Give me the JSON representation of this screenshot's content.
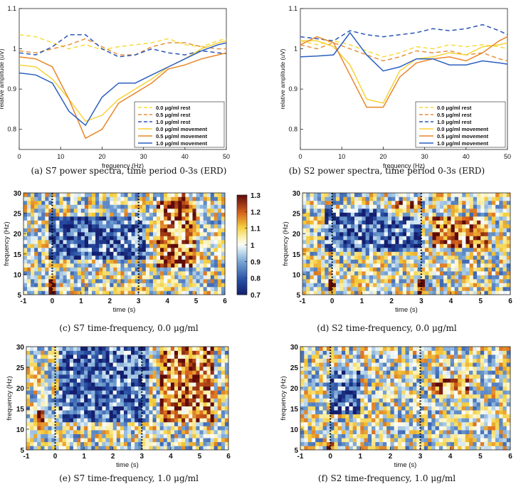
{
  "colors": {
    "rest_0": "#f5dc3c",
    "rest_05": "#e8913a",
    "rest_10": "#2b56b8",
    "mov_0": "#f7d33a",
    "mov_05": "#e8862a",
    "mov_10": "#2d5fc0"
  },
  "chart_data": [
    {
      "type": "line",
      "caption": "(a) S7 power spectra, time period 0-3s (ERD)",
      "xlabel": "frequency (Hz)",
      "ylabel": "relative amplitude (uV)",
      "xlim": [
        0,
        50
      ],
      "ylim": [
        0.75,
        1.1
      ],
      "xticks": [
        "0",
        "10",
        "20",
        "30",
        "40",
        "50"
      ],
      "yticks": [
        "0.8",
        "0.9",
        "1",
        "1.1"
      ],
      "x": [
        0,
        4,
        8,
        12,
        16,
        20,
        24,
        28,
        32,
        36,
        40,
        44,
        48,
        50
      ],
      "series": [
        {
          "name": "0.0 μg/ml rest",
          "style": "dashed",
          "values": [
            1.035,
            1.03,
            1.015,
            1.0,
            1.01,
            0.998,
            1.005,
            1.01,
            1.015,
            1.025,
            1.01,
            1.005,
            1.02,
            1.025
          ]
        },
        {
          "name": "0.5 μg/ml rest",
          "style": "dashed",
          "values": [
            0.995,
            0.99,
            1.0,
            1.01,
            1.025,
            1.005,
            0.985,
            0.985,
            1.005,
            1.015,
            1.015,
            1.005,
            1.0,
            1.0
          ]
        },
        {
          "name": "1.0 μg/ml rest",
          "style": "dashed",
          "values": [
            0.99,
            0.985,
            1.005,
            1.035,
            1.035,
            1.0,
            0.98,
            0.985,
            1.0,
            0.99,
            0.985,
            0.995,
            0.99,
            0.988
          ]
        },
        {
          "name": "0.0 μg/ml movement",
          "style": "solid",
          "values": [
            0.96,
            0.955,
            0.925,
            0.875,
            0.82,
            0.835,
            0.875,
            0.9,
            0.925,
            0.955,
            0.975,
            1.0,
            1.015,
            1.02
          ]
        },
        {
          "name": "0.5 μg/ml movement",
          "style": "solid",
          "values": [
            0.98,
            0.975,
            0.955,
            0.875,
            0.778,
            0.8,
            0.865,
            0.89,
            0.915,
            0.95,
            0.96,
            0.975,
            0.985,
            0.99
          ]
        },
        {
          "name": "1.0 μg/ml movement",
          "style": "solid",
          "values": [
            0.94,
            0.935,
            0.915,
            0.845,
            0.81,
            0.88,
            0.915,
            0.915,
            0.935,
            0.955,
            0.975,
            0.995,
            1.01,
            1.015
          ]
        }
      ]
    },
    {
      "type": "line",
      "caption": "(b) S2 power spectra, time period 0-3s (ERD)",
      "xlabel": "frequency (Hz)",
      "ylabel": "relative amplitude (uV)",
      "xlim": [
        0,
        50
      ],
      "ylim": [
        0.75,
        1.1
      ],
      "xticks": [
        "0",
        "10",
        "20",
        "30",
        "40",
        "50"
      ],
      "yticks": [
        "0.8",
        "0.9",
        "1",
        "1.1"
      ],
      "x": [
        0,
        4,
        8,
        12,
        16,
        20,
        24,
        28,
        32,
        36,
        40,
        44,
        48,
        50
      ],
      "series": [
        {
          "name": "0.0 μg/ml rest",
          "style": "dashed",
          "values": [
            1.02,
            1.01,
            1.02,
            1.01,
            0.995,
            0.98,
            0.99,
            1.005,
            1.0,
            1.01,
            1.005,
            1.01,
            1.005,
            1.0
          ]
        },
        {
          "name": "0.5 μg/ml rest",
          "style": "dashed",
          "values": [
            1.01,
            1.0,
            1.015,
            1.0,
            0.985,
            0.97,
            0.98,
            0.995,
            0.99,
            0.995,
            0.985,
            0.99,
            0.975,
            0.97
          ]
        },
        {
          "name": "1.0 μg/ml rest",
          "style": "dashed",
          "values": [
            1.03,
            1.025,
            1.02,
            1.045,
            1.035,
            1.03,
            1.035,
            1.04,
            1.05,
            1.045,
            1.05,
            1.06,
            1.045,
            1.035
          ]
        },
        {
          "name": "0.0 μg/ml movement",
          "style": "solid",
          "values": [
            1.02,
            1.02,
            1.005,
            0.96,
            0.875,
            0.865,
            0.945,
            0.975,
            0.98,
            0.99,
            0.985,
            1.005,
            1.01,
            1.015
          ]
        },
        {
          "name": "0.5 μg/ml movement",
          "style": "solid",
          "values": [
            1.01,
            1.03,
            1.015,
            0.935,
            0.855,
            0.855,
            0.93,
            0.965,
            0.975,
            0.98,
            0.97,
            0.99,
            1.02,
            1.03
          ]
        },
        {
          "name": "1.0 μg/ml movement",
          "style": "solid",
          "values": [
            0.98,
            0.982,
            0.985,
            1.04,
            0.985,
            0.945,
            0.955,
            0.975,
            0.975,
            0.96,
            0.96,
            0.97,
            0.965,
            0.962
          ]
        }
      ]
    },
    {
      "type": "heatmap",
      "caption": "(c) S7 time-frequency, 0.0 μg/ml",
      "xlabel": "time (s)",
      "ylabel": "frequency (Hz)",
      "xlim": [
        -1,
        6
      ],
      "ylim": [
        5,
        30
      ],
      "xticks": [
        "-1",
        "0",
        "1",
        "2",
        "3",
        "4",
        "5",
        "6"
      ],
      "yticks": [
        "5",
        "10",
        "15",
        "20",
        "25",
        "30"
      ],
      "event_times": [
        0,
        3
      ],
      "pattern": {
        "seed": 7,
        "erd_bands": [
          [
            -0.1,
            3.2,
            14,
            24
          ]
        ],
        "ers_bands": [
          [
            3.6,
            5.0,
            12,
            28
          ],
          [
            4.0,
            4.8,
            26,
            30
          ]
        ],
        "ers_spots": [
          [
            0.0,
            7
          ]
        ]
      },
      "colorbar": {
        "ticks": [
          "1.3",
          "1.2",
          "1.1",
          "1",
          "0.9",
          "0.8",
          "0.7"
        ],
        "range": [
          0.7,
          1.3
        ]
      }
    },
    {
      "type": "heatmap",
      "caption": "(d) S2 time-frequency, 0.0 μg/ml",
      "xlabel": "time (s)",
      "ylabel": "frequency (Hz)",
      "xlim": [
        -1,
        6
      ],
      "ylim": [
        5,
        30
      ],
      "xticks": [
        "-1",
        "0",
        "1",
        "2",
        "3",
        "4",
        "5",
        "6"
      ],
      "yticks": [
        "5",
        "10",
        "15",
        "20",
        "25",
        "30"
      ],
      "event_times": [
        0,
        3
      ],
      "pattern": {
        "seed": 11,
        "erd_bands": [
          [
            -0.2,
            3.0,
            16,
            26
          ]
        ],
        "ers_bands": [
          [
            3.4,
            5.2,
            17,
            24
          ],
          [
            2.0,
            3.0,
            24,
            28
          ]
        ],
        "ers_spots": [
          [
            0.0,
            7
          ],
          [
            3.0,
            7
          ]
        ]
      }
    },
    {
      "type": "heatmap",
      "caption": "(e) S7 time-frequency, 1.0 μg/ml",
      "xlabel": "time (s)",
      "ylabel": "frequency (Hz)",
      "xlim": [
        -1,
        6
      ],
      "ylim": [
        5,
        30
      ],
      "xticks": [
        "-1",
        "0",
        "1",
        "2",
        "3",
        "4",
        "5",
        "6"
      ],
      "yticks": [
        "5",
        "10",
        "15",
        "20",
        "25",
        "30"
      ],
      "event_times": [
        0,
        3
      ],
      "pattern": {
        "seed": 23,
        "erd_bands": [
          [
            0.1,
            3.2,
            12,
            30
          ]
        ],
        "ers_bands": [
          [
            3.6,
            5.5,
            12,
            30
          ]
        ],
        "ers_spots": [
          [
            -0.5,
            12
          ]
        ]
      }
    },
    {
      "type": "heatmap",
      "caption": "(f) S2 time-frequency, 1.0 μg/ml",
      "xlabel": "time (s)",
      "ylabel": "frequency (Hz)",
      "xlim": [
        -1,
        6
      ],
      "ylim": [
        5,
        30
      ],
      "xticks": [
        "-1",
        "0",
        "1",
        "2",
        "3",
        "4",
        "5",
        "6"
      ],
      "yticks": [
        "5",
        "10",
        "15",
        "20",
        "25",
        "30"
      ],
      "event_times": [
        0,
        3
      ],
      "pattern": {
        "seed": 31,
        "erd_bands": [
          [
            0.0,
            1.0,
            14,
            24
          ]
        ],
        "ers_bands": [
          [
            3.4,
            4.6,
            18,
            22
          ]
        ],
        "ers_spots": [
          [
            0.0,
            5
          ]
        ]
      }
    }
  ]
}
